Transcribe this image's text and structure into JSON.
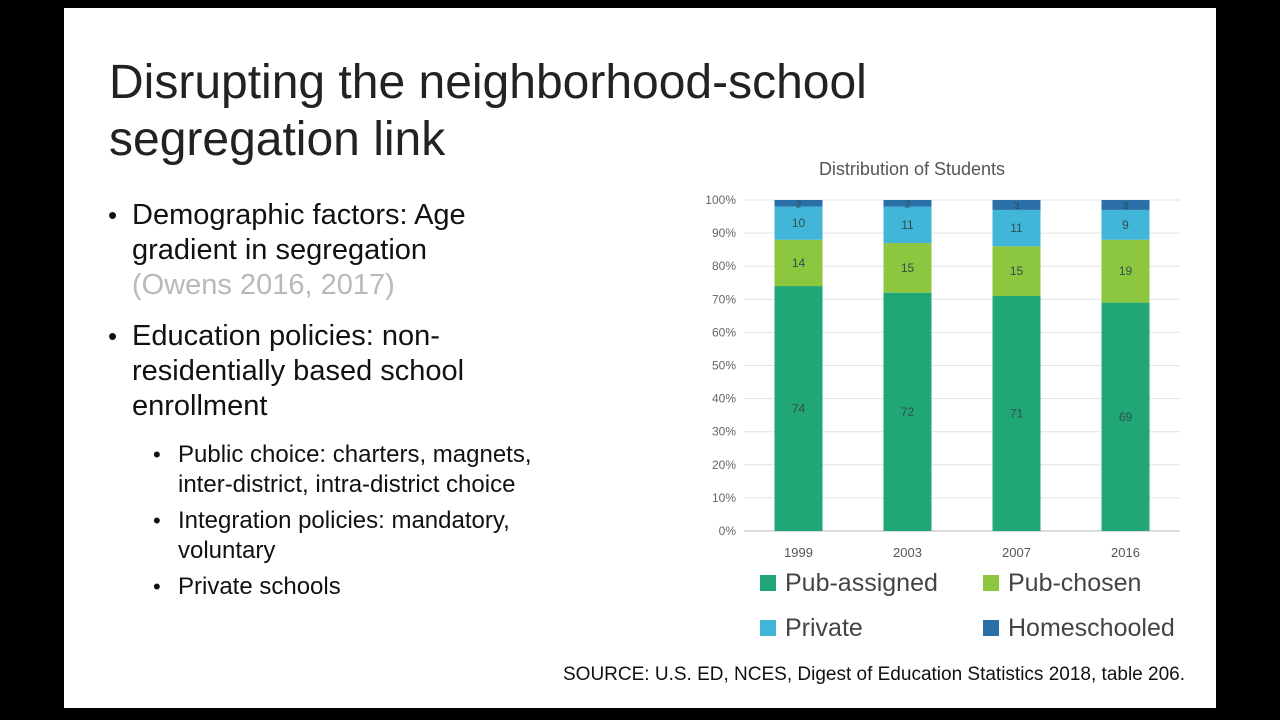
{
  "slide": {
    "title": "Disrupting the neighborhood-school segregation link",
    "bullets": [
      {
        "text": "Demographic factors: Age gradient in segregation",
        "cite": "(Owens 2016, 2017)"
      },
      {
        "text": "Education policies: non-residentially based school enrollment"
      }
    ],
    "sub_bullets": [
      "Public choice: charters, magnets, inter-district, intra-district choice",
      "Integration policies: mandatory, voluntary",
      "Private schools"
    ],
    "source": "SOURCE: U.S. ED, NCES, Digest of Education Statistics 2018, table 206."
  },
  "chart_data": {
    "type": "bar",
    "stacked": true,
    "title": "Distribution of Students",
    "categories": [
      "1999",
      "2003",
      "2007",
      "2016"
    ],
    "series": [
      {
        "name": "Pub-assigned",
        "color": "#21A675",
        "values": [
          74,
          72,
          71,
          69
        ]
      },
      {
        "name": "Pub-chosen",
        "color": "#8DC63F",
        "values": [
          14,
          15,
          15,
          19
        ]
      },
      {
        "name": "Private",
        "color": "#41B6D9",
        "values": [
          10,
          11,
          11,
          9
        ]
      },
      {
        "name": "Homeschooled",
        "color": "#2B6FA8",
        "values": [
          2,
          2,
          3,
          3
        ]
      }
    ],
    "y_ticks": [
      "0%",
      "10%",
      "20%",
      "30%",
      "40%",
      "50%",
      "60%",
      "70%",
      "80%",
      "90%",
      "100%"
    ],
    "ylim": [
      0,
      100
    ],
    "legend_position": "bottom",
    "grid": true
  }
}
